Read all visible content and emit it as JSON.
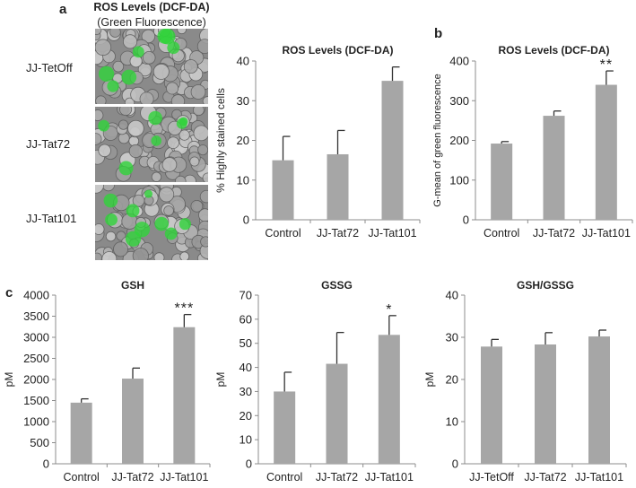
{
  "panel_labels": {
    "a": "a",
    "b": "b",
    "c": "c"
  },
  "micrograph": {
    "title": "ROS Levels (DCF-DA)",
    "subtitle": "(Green Fluorescence)",
    "rows": [
      "JJ-TetOff",
      "JJ-Tat72",
      "JJ-Tat101"
    ]
  },
  "colors": {
    "bar": "#a6a6a6",
    "axis": "#8c8c8c",
    "error": "#333333",
    "cell": "#b9b9b9",
    "green": "#2fd33a"
  },
  "chart_data": [
    {
      "id": "ros-percent",
      "type": "bar",
      "title": "ROS Levels (DCF-DA)",
      "xlabel": "",
      "ylabel": "% Highly stained cells",
      "categories": [
        "Control",
        "JJ-Tat72",
        "JJ-Tat101"
      ],
      "values": [
        15,
        16.5,
        35
      ],
      "errors": [
        6,
        6,
        3.5
      ],
      "annotations": [
        "",
        "",
        ""
      ],
      "ylim": [
        0,
        40
      ],
      "yticks": [
        0,
        10,
        20,
        30,
        40
      ],
      "grid": false
    },
    {
      "id": "ros-gmean",
      "type": "bar",
      "title": "ROS Levels (DCF-DA)",
      "xlabel": "",
      "ylabel": "G-mean of green fluorescence",
      "categories": [
        "Control",
        "JJ-Tat72",
        "JJ-Tat101"
      ],
      "values": [
        192,
        262,
        340
      ],
      "errors": [
        5,
        12,
        35
      ],
      "annotations": [
        "",
        "",
        "**"
      ],
      "ylim": [
        0,
        400
      ],
      "yticks": [
        0,
        100,
        200,
        300,
        400
      ],
      "grid": false
    },
    {
      "id": "gsh",
      "type": "bar",
      "title": "GSH",
      "xlabel": "",
      "ylabel": "pM",
      "categories": [
        "Control",
        "JJ-Tat72",
        "JJ-Tat101"
      ],
      "values": [
        1450,
        2020,
        3240
      ],
      "errors": [
        90,
        250,
        300
      ],
      "annotations": [
        "",
        "",
        "***"
      ],
      "ylim": [
        0,
        4000
      ],
      "yticks": [
        0,
        500,
        1000,
        1500,
        2000,
        2500,
        3000,
        3500,
        4000
      ],
      "grid": false
    },
    {
      "id": "gssg",
      "type": "bar",
      "title": "GSSG",
      "xlabel": "",
      "ylabel": "pM",
      "categories": [
        "Control",
        "JJ-Tat72",
        "JJ-Tat101"
      ],
      "values": [
        30,
        41.5,
        53.5
      ],
      "errors": [
        8,
        13,
        8
      ],
      "annotations": [
        "",
        "",
        "*"
      ],
      "ylim": [
        0,
        70
      ],
      "yticks": [
        0,
        10,
        20,
        30,
        40,
        50,
        60,
        70
      ],
      "grid": false
    },
    {
      "id": "gsh-gssg",
      "type": "bar",
      "title": "GSH/GSSG",
      "xlabel": "",
      "ylabel": "pM",
      "categories": [
        "JJ-TetOff",
        "JJ-Tat72",
        "JJ-Tat101"
      ],
      "values": [
        27.8,
        28.3,
        30.2
      ],
      "errors": [
        1.7,
        2.8,
        1.5
      ],
      "annotations": [
        "",
        "",
        ""
      ],
      "ylim": [
        0,
        40
      ],
      "yticks": [
        0,
        10,
        20,
        30,
        40
      ],
      "grid": false
    }
  ]
}
